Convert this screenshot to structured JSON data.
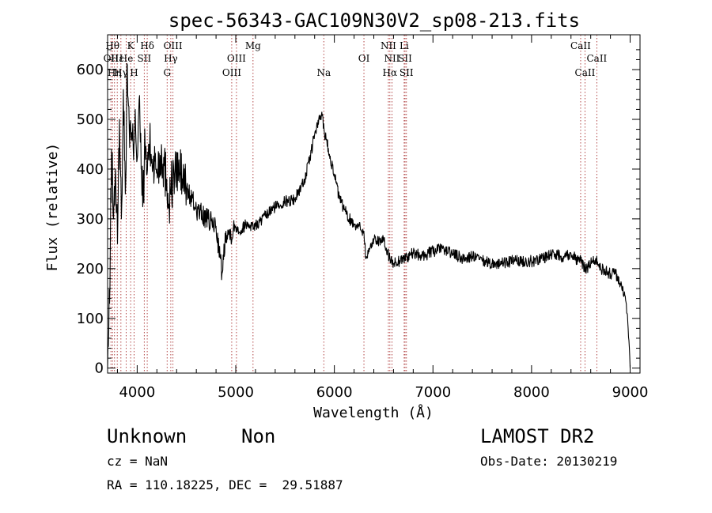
{
  "chart_data": {
    "type": "line",
    "title": "spec-56343-GAC109N30V2_sp08-213.fits",
    "xlabel": "Wavelength (Å)",
    "ylabel": "Flux (relative)",
    "xlim": [
      3700,
      9100
    ],
    "ylim": [
      -10,
      670
    ],
    "xticks": [
      4000,
      5000,
      6000,
      7000,
      8000,
      9000
    ],
    "yticks": [
      0,
      100,
      200,
      300,
      400,
      500,
      600
    ],
    "grid": false,
    "legend": "none",
    "series": [
      {
        "x": [
          3700,
          3720,
          3740,
          3760,
          3780,
          3800,
          3820,
          3840,
          3860,
          3880,
          3900,
          3920,
          3940,
          3960,
          3980,
          4000,
          4020,
          4040,
          4060,
          4080,
          4100,
          4120,
          4150,
          4200,
          4250,
          4300,
          4320,
          4340,
          4380,
          4420,
          4500,
          4600,
          4700,
          4800,
          4860,
          4900,
          4950,
          5000,
          5050,
          5100,
          5200,
          5300,
          5400,
          5500,
          5600,
          5700,
          5750,
          5800,
          5850,
          5880,
          5900,
          5920,
          5950,
          6000,
          6050,
          6100,
          6150,
          6200,
          6250,
          6300,
          6320,
          6400,
          6500,
          6563,
          6600,
          6700,
          6800,
          6900,
          7000,
          7100,
          7200,
          7300,
          7400,
          7500,
          7600,
          7700,
          7800,
          7900,
          8000,
          8100,
          8200,
          8300,
          8400,
          8450,
          8500,
          8550,
          8600,
          8650,
          8700,
          8800,
          8850,
          8900,
          8950,
          8980,
          9000
        ],
        "y": [
          0,
          130,
          440,
          300,
          400,
          250,
          500,
          300,
          560,
          350,
          610,
          480,
          460,
          440,
          520,
          420,
          540,
          400,
          340,
          450,
          390,
          450,
          420,
          400,
          430,
          380,
          330,
          360,
          390,
          400,
          360,
          320,
          300,
          285,
          190,
          275,
          270,
          285,
          275,
          290,
          285,
          305,
          325,
          335,
          340,
          380,
          420,
          470,
          500,
          510,
          470,
          460,
          430,
          390,
          340,
          320,
          300,
          290,
          285,
          275,
          220,
          260,
          255,
          220,
          210,
          220,
          230,
          225,
          235,
          240,
          230,
          220,
          225,
          215,
          210,
          210,
          215,
          215,
          215,
          220,
          230,
          225,
          230,
          220,
          215,
          200,
          210,
          220,
          200,
          190,
          190,
          170,
          145,
          80,
          0
        ]
      }
    ],
    "lines": [
      {
        "x": 3750,
        "label": "Hθ",
        "row": 1
      },
      {
        "x": 3734,
        "label": "OII",
        "row": 2
      },
      {
        "x": 3770,
        "label": "Hη",
        "row": 3
      },
      {
        "x": 3798,
        "label": "Hε",
        "row": 2
      },
      {
        "x": 3835,
        "label": "Hγ",
        "row": 3
      },
      {
        "x": 3889,
        "label": "He",
        "row": 2
      },
      {
        "x": 3934,
        "label": "K",
        "row": 1
      },
      {
        "x": 3969,
        "label": "H",
        "row": 3
      },
      {
        "x": 4072,
        "label": "SII",
        "row": 2
      },
      {
        "x": 4102,
        "label": "Hδ",
        "row": 1
      },
      {
        "x": 4304,
        "label": "G",
        "row": 3
      },
      {
        "x": 4341,
        "label": "Hγ",
        "row": 2
      },
      {
        "x": 4363,
        "label": "OIII",
        "row": 1
      },
      {
        "x": 4959,
        "label": "OIII",
        "row": 3
      },
      {
        "x": 5007,
        "label": "OIII",
        "row": 2
      },
      {
        "x": 5175,
        "label": "Mg",
        "row": 1
      },
      {
        "x": 5893,
        "label": "Na",
        "row": 3
      },
      {
        "x": 6300,
        "label": "OI",
        "row": 2
      },
      {
        "x": 6548,
        "label": "NII",
        "row": 1
      },
      {
        "x": 6563,
        "label": "Hα",
        "row": 3
      },
      {
        "x": 6584,
        "label": "NII",
        "row": 2
      },
      {
        "x": 6708,
        "label": "Li",
        "row": 1
      },
      {
        "x": 6717,
        "label": "SII",
        "row": 2
      },
      {
        "x": 6731,
        "label": "SII",
        "row": 3
      },
      {
        "x": 8498,
        "label": "CaII",
        "row": 1
      },
      {
        "x": 8542,
        "label": "CaII",
        "row": 3
      },
      {
        "x": 8662,
        "label": "CaII",
        "row": 2
      }
    ]
  },
  "info": {
    "class": "Unknown",
    "subclass": "Non",
    "survey": "LAMOST DR2",
    "cz": "cz = NaN",
    "obs_date": "Obs-Date: 20130219",
    "radec": "RA = 110.18225, DEC =  29.51887"
  }
}
